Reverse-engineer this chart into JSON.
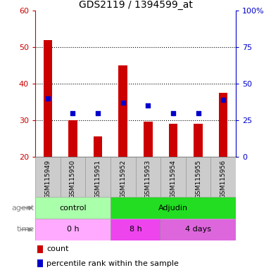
{
  "title": "GDS2119 / 1394599_at",
  "samples": [
    "GSM115949",
    "GSM115950",
    "GSM115951",
    "GSM115952",
    "GSM115953",
    "GSM115954",
    "GSM115955",
    "GSM115956"
  ],
  "counts": [
    52,
    30,
    25.5,
    45,
    29.5,
    29,
    29,
    37.5
  ],
  "percentile_ranks_pct": [
    40,
    30,
    30,
    37,
    35,
    30,
    30,
    39
  ],
  "ylim_left": [
    20,
    60
  ],
  "ylim_right": [
    0,
    100
  ],
  "yticks_left": [
    20,
    30,
    40,
    50,
    60
  ],
  "yticks_right": [
    0,
    25,
    50,
    75,
    100
  ],
  "ytick_right_labels": [
    "0",
    "25",
    "50",
    "75",
    "100%"
  ],
  "agent_groups": [
    {
      "label": "control",
      "start": 0,
      "end": 3,
      "color": "#AAFFAA"
    },
    {
      "label": "Adjudin",
      "start": 3,
      "end": 8,
      "color": "#22DD22"
    }
  ],
  "time_groups": [
    {
      "label": "0 h",
      "start": 0,
      "end": 3,
      "color": "#FFAAFF"
    },
    {
      "label": "8 h",
      "start": 3,
      "end": 5,
      "color": "#EE44EE"
    },
    {
      "label": "4 days",
      "start": 5,
      "end": 8,
      "color": "#DD66DD"
    }
  ],
  "bar_color": "#CC0000",
  "dot_color": "#0000CC",
  "bar_width": 0.35,
  "background_color": "#ffffff",
  "plot_bg_color": "#ffffff",
  "tick_label_color_left": "#CC0000",
  "tick_label_color_right": "#0000CC",
  "grid_color": "#000000",
  "sample_bg_color": "#CCCCCC",
  "label_color": "#888888"
}
